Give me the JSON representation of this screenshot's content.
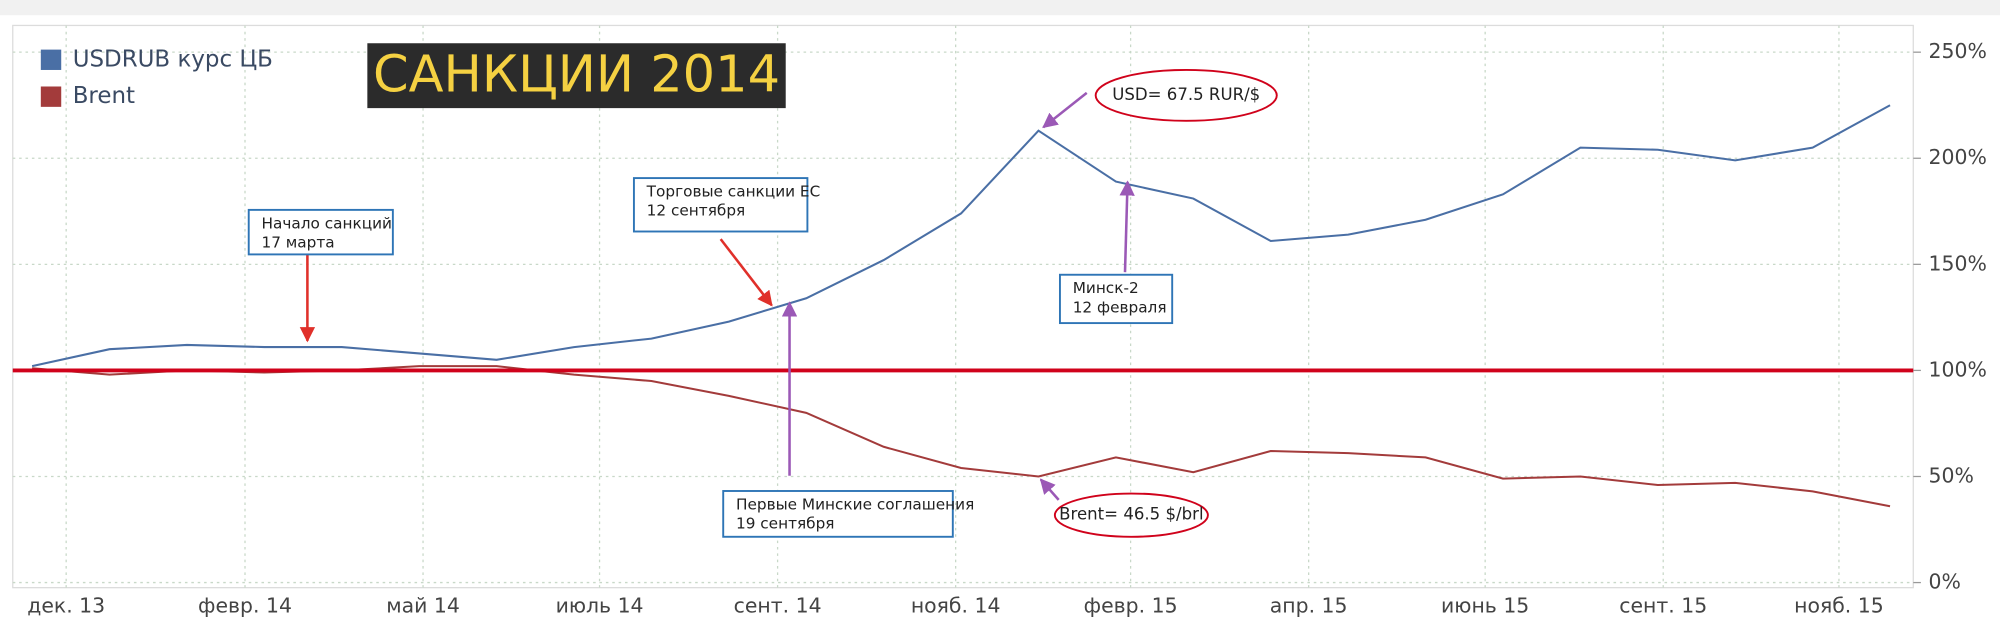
{
  "chart_data": {
    "type": "line",
    "title": "САНКЦИИ 2014",
    "x": [
      0,
      1,
      2,
      3,
      4,
      5,
      6,
      7,
      8,
      9,
      10,
      11,
      12,
      13,
      14,
      15,
      16,
      17,
      18,
      19,
      20,
      21,
      22,
      23,
      24
    ],
    "series": [
      {
        "name": "USDRUB курс ЦБ",
        "color": "#4a6fa5",
        "values": [
          102,
          110,
          112,
          111,
          111,
          108,
          105,
          111,
          115,
          123,
          134,
          152,
          174,
          213,
          189,
          181,
          161,
          164,
          171,
          183,
          205,
          204,
          199,
          205,
          225
        ]
      },
      {
        "name": "Brent",
        "color": "#a33b3b",
        "values": [
          101,
          98,
          100,
          99,
          100,
          102,
          102,
          98,
          95,
          88,
          80,
          64,
          54,
          50,
          59,
          52,
          62,
          61,
          59,
          49,
          50,
          46,
          47,
          43,
          36
        ]
      }
    ],
    "xlim": [
      -0.25,
      24.3
    ],
    "xticks": [
      {
        "value": 0.44,
        "label": "дек. 13"
      },
      {
        "value": 2.75,
        "label": "февр. 14"
      },
      {
        "value": 5.05,
        "label": "май 14"
      },
      {
        "value": 7.33,
        "label": "июль 14"
      },
      {
        "value": 9.63,
        "label": "сент. 14"
      },
      {
        "value": 11.93,
        "label": "нояб. 14"
      },
      {
        "value": 14.19,
        "label": "февр. 15"
      },
      {
        "value": 16.49,
        "label": "апр. 15"
      },
      {
        "value": 18.77,
        "label": "июнь 15"
      },
      {
        "value": 21.07,
        "label": "сент. 15"
      },
      {
        "value": 23.34,
        "label": "нояб. 15"
      }
    ],
    "ylim": [
      -2.4,
      262.6
    ],
    "yticks": [
      {
        "value": 0,
        "label": "0%"
      },
      {
        "value": 50,
        "label": "50%"
      },
      {
        "value": 100,
        "label": "100%"
      },
      {
        "value": 150,
        "label": "150%"
      },
      {
        "value": 200,
        "label": "200%"
      },
      {
        "value": 250,
        "label": "250%"
      }
    ],
    "grid": true,
    "legend": "top-left",
    "reference_line": {
      "value": 100,
      "color": "#d0021b"
    },
    "annotations": [
      {
        "lines": [
          "Начало санкций",
          "17 марта"
        ]
      },
      {
        "lines": [
          "Торговые санкции ЕС",
          "12 сентября"
        ]
      },
      {
        "lines": [
          "Первые Минские соглашения",
          "19 сентября"
        ]
      },
      {
        "lines": [
          "Минск-2",
          "12 февраля"
        ]
      },
      {
        "lines": [
          "USD= 67.5 RUR/$"
        ]
      },
      {
        "lines": [
          "Brent= 46.5 $/brl"
        ]
      }
    ]
  }
}
